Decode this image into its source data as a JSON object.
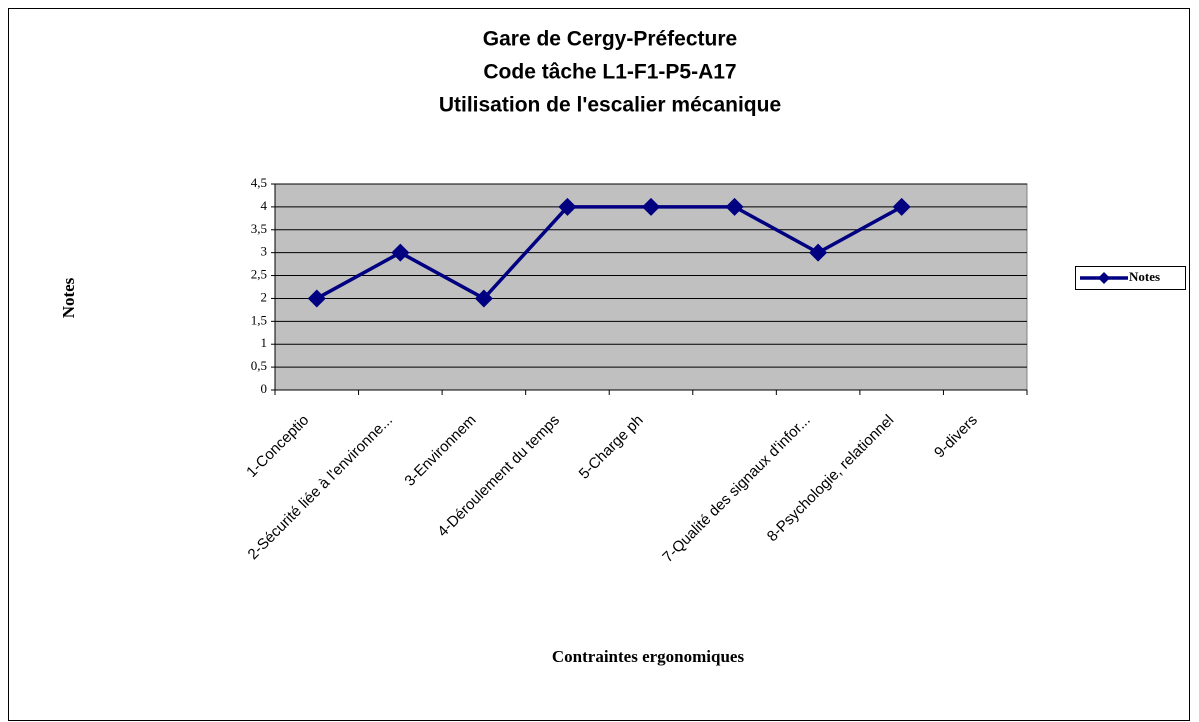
{
  "chart_data": {
    "type": "line",
    "title": [
      "Gare de Cergy-Préfecture",
      "Code tâche L1-F1-P5-A17",
      "Utilisation de l'escalier mécanique"
    ],
    "x_label": "Contraintes ergonomiques",
    "y_label": "Notes",
    "categories": [
      "1-Conceptio",
      "2-Sécurité liée à l'environne...",
      "3-Environnem",
      "4-Déroulement du temps",
      "5-Charge ph",
      null,
      "7-Qualité des signaux d'infor...",
      "8-Psychologie, relationnel",
      "9-divers"
    ],
    "series": [
      {
        "name": "Notes",
        "color": "#000080",
        "values": [
          2,
          3,
          2,
          4,
          4,
          4,
          3,
          4,
          null
        ]
      }
    ],
    "ylim": [
      0,
      4.5
    ],
    "yticks": [
      0,
      {
        "value": 0.5,
        "label": "0,5"
      },
      1,
      {
        "value": 1.5,
        "label": "1,5"
      },
      2,
      {
        "value": 2.5,
        "label": "2,5"
      },
      3,
      {
        "value": 3.5,
        "label": "3,5"
      },
      4,
      {
        "value": 4.5,
        "label": "4,5"
      }
    ],
    "grid": true,
    "legend": "right",
    "plot_background": "#c0c0c0"
  }
}
